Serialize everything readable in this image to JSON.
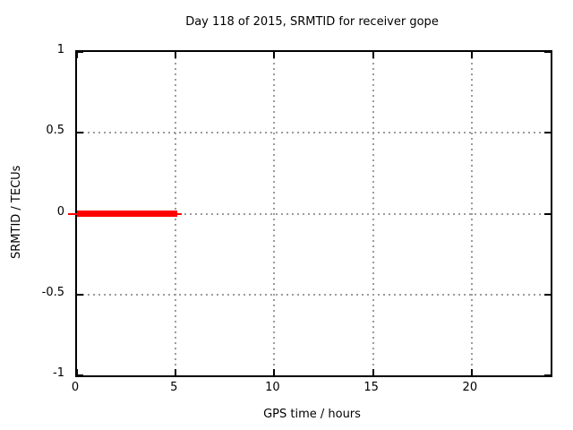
{
  "chart_data": {
    "type": "line",
    "title": "Day 118 of 2015, SRMTID for receiver gope",
    "xlabel": "GPS time / hours",
    "ylabel": "SRMTID / TECUs",
    "xlim": [
      0,
      24
    ],
    "ylim": [
      -1,
      1
    ],
    "xticks": [
      {
        "v": 0,
        "label": "0"
      },
      {
        "v": 5,
        "label": "5"
      },
      {
        "v": 10,
        "label": "10"
      },
      {
        "v": 15,
        "label": "15"
      },
      {
        "v": 20,
        "label": "20"
      }
    ],
    "yticks": [
      {
        "v": 1,
        "label": "1"
      },
      {
        "v": 0.5,
        "label": "0.5"
      },
      {
        "v": 0,
        "label": "0"
      },
      {
        "v": -0.5,
        "label": "-0.5"
      },
      {
        "v": -1,
        "label": "-1"
      }
    ],
    "grid": true,
    "grid_style": "dotted",
    "legend": "none",
    "background_color": "#ffffff",
    "axis_color": "#000000",
    "grid_color": "#9c9c9c",
    "text_color": "#000000",
    "series": [
      {
        "name": "SRMTID",
        "color": "#ff0000",
        "x": [
          0,
          5.1
        ],
        "y": [
          0,
          0
        ]
      }
    ]
  }
}
